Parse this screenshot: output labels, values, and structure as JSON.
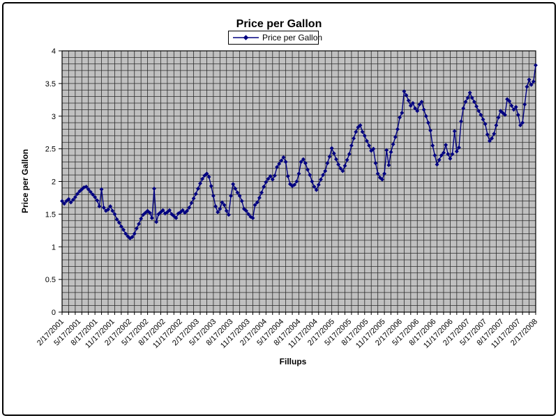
{
  "chart_data": {
    "type": "line",
    "title": "Price per Gallon",
    "legend_label": "Price per Gallon",
    "xlabel": "Fillups",
    "ylabel": "Price per Gallon",
    "ylim": [
      0,
      4
    ],
    "grid": "minor-both",
    "legend_position": "top-center",
    "marker": "diamond",
    "colors": {
      "series": "#000080",
      "plot_bg": "#c0c0c0",
      "grid": "#2a2a2a",
      "axis": "#000000",
      "chart_bg": "#ffffff"
    },
    "y_tick_labels": [
      "0",
      "0.5",
      "1",
      "1.5",
      "2",
      "2.5",
      "3",
      "3.5",
      "4"
    ],
    "x_tick_labels": [
      "2/17/2001",
      "5/17/2001",
      "8/17/2001",
      "11/17/2001",
      "2/17/2002",
      "5/17/2002",
      "8/17/2002",
      "11/17/2002",
      "2/17/2003",
      "5/17/2003",
      "8/17/2003",
      "11/17/2003",
      "2/17/2004",
      "5/17/2004",
      "8/17/2004",
      "11/17/2004",
      "2/17/2005",
      "5/17/2005",
      "8/17/2005",
      "11/17/2005",
      "2/17/2006",
      "5/17/2006",
      "8/17/2006",
      "11/17/2006",
      "2/17/2007",
      "5/17/2007",
      "8/17/2007",
      "11/17/2007",
      "2/17/2008"
    ],
    "series": [
      {
        "name": "Price per Gallon",
        "values": [
          1.7,
          1.66,
          1.7,
          1.73,
          1.68,
          1.72,
          1.76,
          1.81,
          1.85,
          1.88,
          1.91,
          1.92,
          1.88,
          1.84,
          1.8,
          1.76,
          1.71,
          1.62,
          1.88,
          1.6,
          1.55,
          1.57,
          1.62,
          1.55,
          1.5,
          1.42,
          1.37,
          1.31,
          1.26,
          1.2,
          1.16,
          1.13,
          1.15,
          1.2,
          1.28,
          1.35,
          1.43,
          1.49,
          1.52,
          1.55,
          1.52,
          1.44,
          1.89,
          1.38,
          1.5,
          1.53,
          1.56,
          1.51,
          1.53,
          1.56,
          1.5,
          1.47,
          1.44,
          1.51,
          1.53,
          1.56,
          1.52,
          1.55,
          1.6,
          1.67,
          1.74,
          1.81,
          1.89,
          1.97,
          2.04,
          2.09,
          2.12,
          2.07,
          1.93,
          1.78,
          1.62,
          1.53,
          1.58,
          1.68,
          1.64,
          1.55,
          1.49,
          1.78,
          1.96,
          1.89,
          1.83,
          1.78,
          1.7,
          1.58,
          1.55,
          1.5,
          1.46,
          1.44,
          1.64,
          1.68,
          1.75,
          1.83,
          1.92,
          1.99,
          2.04,
          2.08,
          2.03,
          2.09,
          2.22,
          2.27,
          2.32,
          2.37,
          2.3,
          2.08,
          1.96,
          1.93,
          1.95,
          2.0,
          2.12,
          2.3,
          2.34,
          2.28,
          2.18,
          2.1,
          2.0,
          1.92,
          1.87,
          1.95,
          2.03,
          2.1,
          2.16,
          2.28,
          2.38,
          2.51,
          2.43,
          2.34,
          2.26,
          2.2,
          2.16,
          2.24,
          2.33,
          2.42,
          2.55,
          2.66,
          2.76,
          2.83,
          2.86,
          2.76,
          2.7,
          2.62,
          2.55,
          2.47,
          2.5,
          2.28,
          2.12,
          2.06,
          2.03,
          2.12,
          2.48,
          2.25,
          2.45,
          2.57,
          2.68,
          2.8,
          2.98,
          3.05,
          3.38,
          3.32,
          3.24,
          3.16,
          3.2,
          3.12,
          3.08,
          3.18,
          3.22,
          3.1,
          3.0,
          2.9,
          2.78,
          2.55,
          2.4,
          2.26,
          2.33,
          2.4,
          2.44,
          2.56,
          2.42,
          2.35,
          2.42,
          2.77,
          2.46,
          2.52,
          2.92,
          3.12,
          3.22,
          3.28,
          3.36,
          3.28,
          3.22,
          3.15,
          3.08,
          3.02,
          2.95,
          2.88,
          2.72,
          2.62,
          2.66,
          2.73,
          2.86,
          2.98,
          3.08,
          3.05,
          3.02,
          3.26,
          3.23,
          3.16,
          3.1,
          3.14,
          3.02,
          2.86,
          2.9,
          3.18,
          3.45,
          3.56,
          3.48,
          3.53,
          3.78
        ]
      }
    ]
  }
}
